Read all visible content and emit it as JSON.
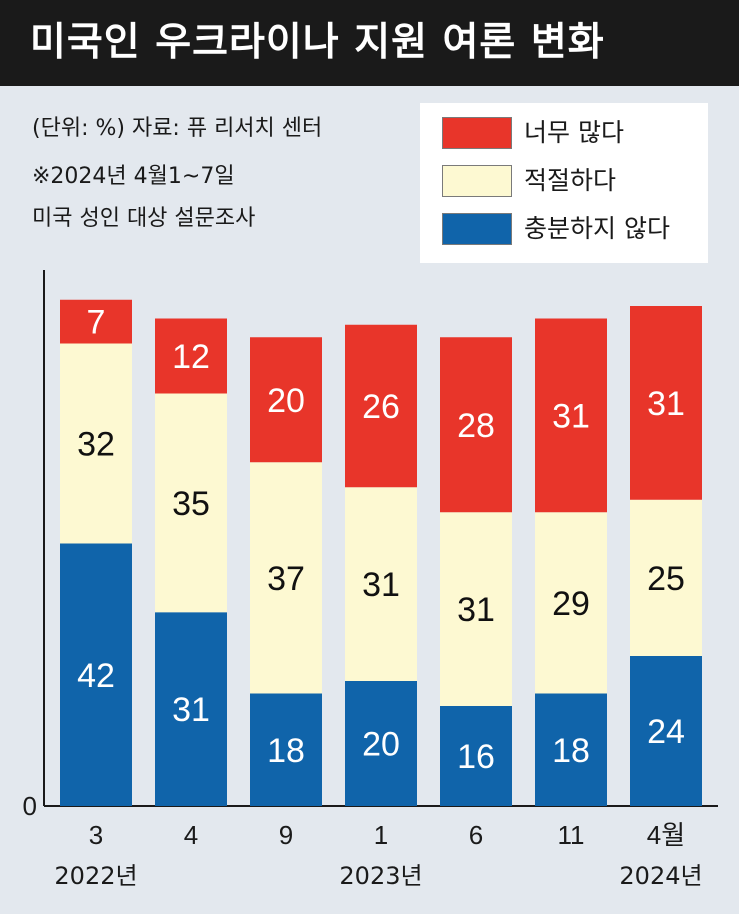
{
  "header": {
    "title": "미국인 우크라이나 지원 여론 변화"
  },
  "notes": {
    "unit_source": "(단위: %)  자료: 퓨 리서치 센터",
    "survey_date": "※2024년 4월1~7일",
    "survey_desc": "미국 성인 대상 설문조사"
  },
  "colors": {
    "too_much": "#e8352a",
    "right_amount": "#fdf9d2",
    "not_enough": "#1064aa",
    "background": "#e3e8ee"
  },
  "chart_data": {
    "type": "bar",
    "stacked": true,
    "title": "미국인 우크라이나 지원 여론 변화",
    "categories": [
      "3",
      "4",
      "9",
      "1",
      "6",
      "11",
      "4월"
    ],
    "year_labels": [
      "2022년",
      "2023년",
      "2024년"
    ],
    "y_tick_labels": [
      "0"
    ],
    "ylim": [
      0,
      100
    ],
    "series": [
      {
        "name": "충분하지 않다",
        "color": "#1064aa",
        "values": [
          42,
          31,
          18,
          20,
          16,
          18,
          24
        ]
      },
      {
        "name": "적절하다",
        "color": "#fdf9d2",
        "values": [
          32,
          35,
          37,
          31,
          31,
          29,
          25
        ]
      },
      {
        "name": "너무 많다",
        "color": "#e8352a",
        "values": [
          7,
          12,
          20,
          26,
          28,
          31,
          31
        ]
      }
    ],
    "legend": {
      "position": "top-right",
      "items": [
        {
          "label": "너무 많다",
          "color": "#e8352a"
        },
        {
          "label": "적절하다",
          "color": "#fdf9d2"
        },
        {
          "label": "충분하지 않다",
          "color": "#1064aa"
        }
      ]
    }
  }
}
